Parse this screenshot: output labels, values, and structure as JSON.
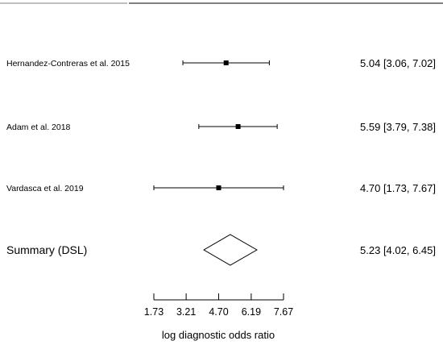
{
  "chart_data": {
    "type": "forest",
    "studies": [
      {
        "label": "Hernandez-Contreras et al. 2015",
        "estimate": 5.04,
        "lower": 3.06,
        "upper": 7.02,
        "ci_text": "5.04 [3.06, 7.02]"
      },
      {
        "label": "Adam et al. 2018",
        "estimate": 5.59,
        "lower": 3.79,
        "upper": 7.38,
        "ci_text": "5.59 [3.79, 7.38]"
      },
      {
        "label": "Vardasca et al. 2019",
        "estimate": 4.7,
        "lower": 1.73,
        "upper": 7.67,
        "ci_text": "4.70 [1.73, 7.67]"
      }
    ],
    "summary": {
      "label": "Summary (DSL)",
      "estimate": 5.23,
      "lower": 4.02,
      "upper": 6.45,
      "ci_text": "5.23 [4.02, 6.45]"
    },
    "x_ticks": [
      "1.73",
      "3.21",
      "4.70",
      "6.19",
      "7.67"
    ],
    "xlim": [
      1.73,
      7.67
    ],
    "xlabel": "log diagnostic odds ratio",
    "grid": false
  }
}
